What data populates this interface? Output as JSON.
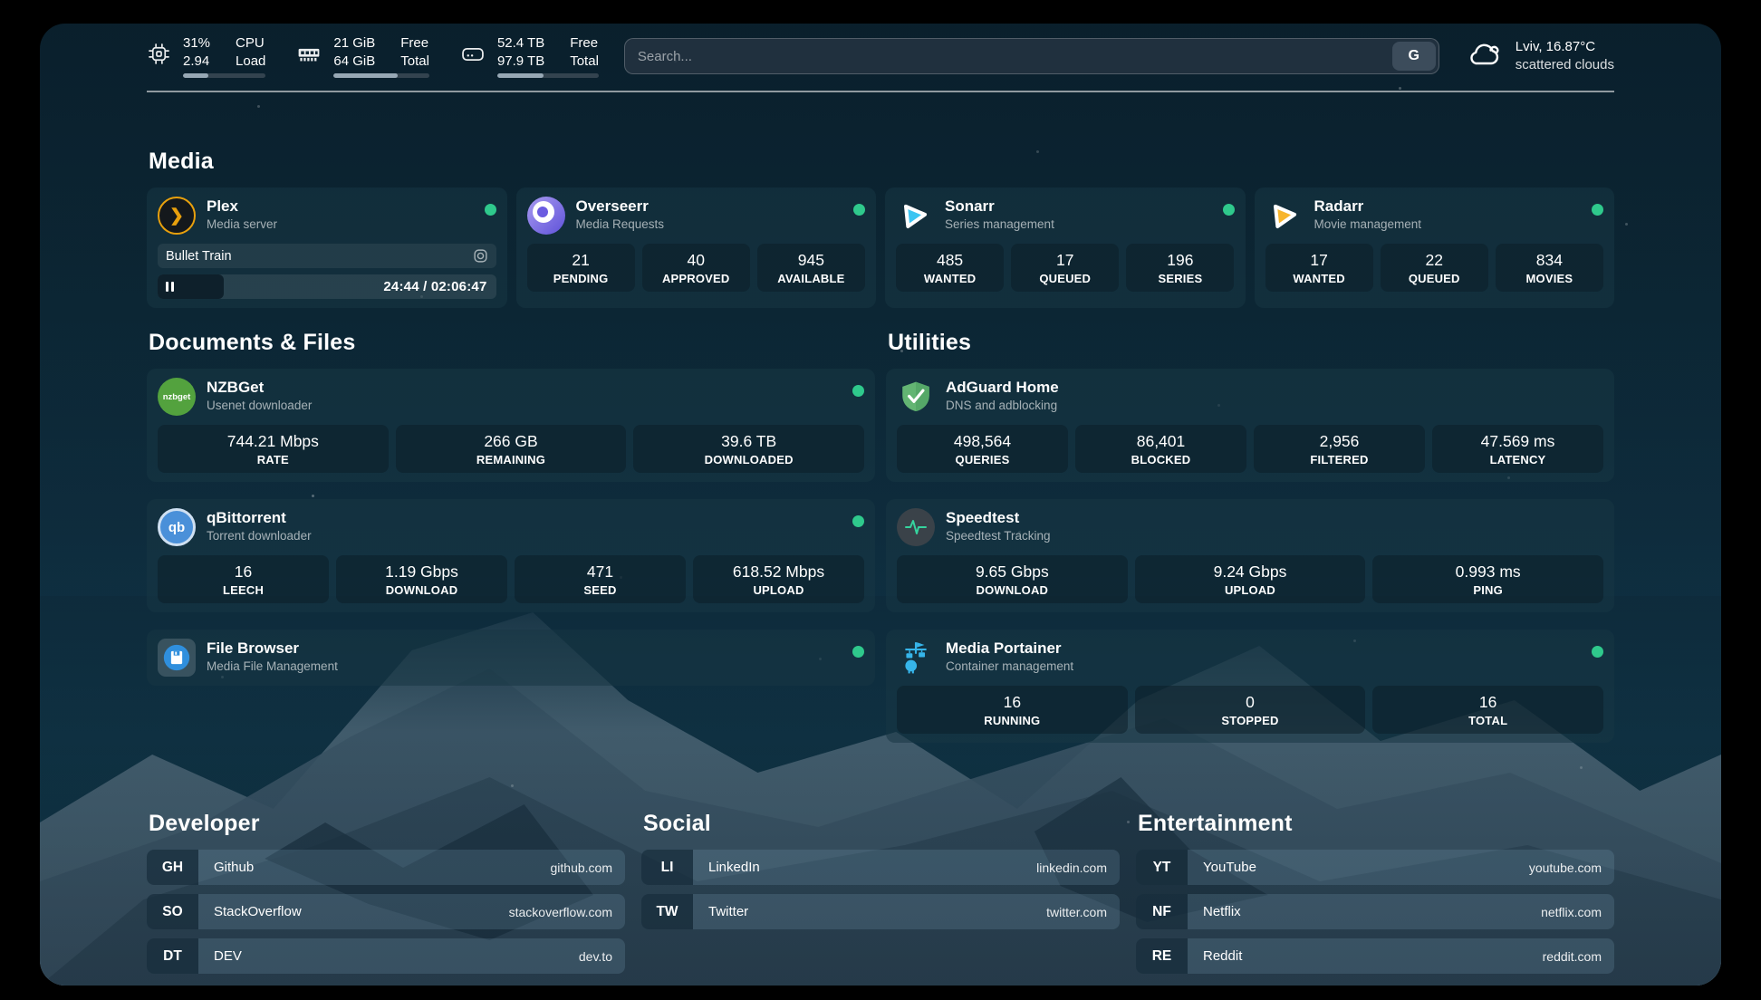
{
  "topbar": {
    "stats": [
      {
        "icon": "cpu-icon",
        "value1": "31%",
        "value2": "2.94",
        "label1": "CPU",
        "label2": "Load",
        "progress": "31%"
      },
      {
        "icon": "memory-icon",
        "value1": "21 GiB",
        "value2": "64 GiB",
        "label1": "Free",
        "label2": "Total",
        "progress": "67%"
      },
      {
        "icon": "disk-icon",
        "value1": "52.4 TB",
        "value2": "97.9 TB",
        "label1": "Free",
        "label2": "Total",
        "progress": "46%"
      }
    ],
    "search": {
      "placeholder": "Search...",
      "button": "G"
    },
    "weather": {
      "icon": "cloud-icon",
      "location_temp": "Lviv, 16.87°C",
      "condition": "scattered clouds"
    }
  },
  "media": {
    "title": "Media",
    "plex": {
      "name": "Plex",
      "desc": "Media server",
      "online": true,
      "now_playing": "Bullet Train",
      "time": "24:44 / 02:06:47",
      "progress": "19.5%"
    },
    "cards": [
      {
        "name": "Overseerr",
        "desc": "Media Requests",
        "online": true,
        "stats": [
          {
            "value": "21",
            "label": "PENDING"
          },
          {
            "value": "40",
            "label": "APPROVED"
          },
          {
            "value": "945",
            "label": "AVAILABLE"
          }
        ]
      },
      {
        "name": "Sonarr",
        "desc": "Series management",
        "online": true,
        "stats": [
          {
            "value": "485",
            "label": "WANTED"
          },
          {
            "value": "17",
            "label": "QUEUED"
          },
          {
            "value": "196",
            "label": "SERIES"
          }
        ]
      },
      {
        "name": "Radarr",
        "desc": "Movie management",
        "online": true,
        "stats": [
          {
            "value": "17",
            "label": "WANTED"
          },
          {
            "value": "22",
            "label": "QUEUED"
          },
          {
            "value": "834",
            "label": "MOVIES"
          }
        ]
      }
    ]
  },
  "documents": {
    "title": "Documents & Files",
    "cards": [
      {
        "name": "NZBGet",
        "desc": "Usenet downloader",
        "online": true,
        "stats": [
          {
            "value": "744.21 Mbps",
            "label": "RATE"
          },
          {
            "value": "266 GB",
            "label": "REMAINING"
          },
          {
            "value": "39.6 TB",
            "label": "DOWNLOADED"
          }
        ]
      },
      {
        "name": "qBittorrent",
        "desc": "Torrent downloader",
        "online": true,
        "stats": [
          {
            "value": "16",
            "label": "LEECH"
          },
          {
            "value": "1.19 Gbps",
            "label": "DOWNLOAD"
          },
          {
            "value": "471",
            "label": "SEED"
          },
          {
            "value": "618.52 Mbps",
            "label": "UPLOAD"
          }
        ]
      },
      {
        "name": "File Browser",
        "desc": "Media File Management",
        "online": true,
        "stats": []
      }
    ]
  },
  "utilities": {
    "title": "Utilities",
    "cards": [
      {
        "name": "AdGuard Home",
        "desc": "DNS and adblocking",
        "online": false,
        "stats": [
          {
            "value": "498,564",
            "label": "QUERIES"
          },
          {
            "value": "86,401",
            "label": "BLOCKED"
          },
          {
            "value": "2,956",
            "label": "FILTERED"
          },
          {
            "value": "47.569 ms",
            "label": "LATENCY"
          }
        ]
      },
      {
        "name": "Speedtest",
        "desc": "Speedtest Tracking",
        "online": false,
        "stats": [
          {
            "value": "9.65 Gbps",
            "label": "DOWNLOAD"
          },
          {
            "value": "9.24 Gbps",
            "label": "UPLOAD"
          },
          {
            "value": "0.993 ms",
            "label": "PING"
          }
        ]
      },
      {
        "name": "Media Portainer",
        "desc": "Container management",
        "online": true,
        "stats": [
          {
            "value": "16",
            "label": "RUNNING"
          },
          {
            "value": "0",
            "label": "STOPPED"
          },
          {
            "value": "16",
            "label": "TOTAL"
          }
        ]
      }
    ]
  },
  "bookmarks": {
    "groups": [
      {
        "title": "Developer",
        "items": [
          {
            "abbr": "GH",
            "name": "Github",
            "domain": "github.com"
          },
          {
            "abbr": "SO",
            "name": "StackOverflow",
            "domain": "stackoverflow.com"
          },
          {
            "abbr": "DT",
            "name": "DEV",
            "domain": "dev.to"
          }
        ]
      },
      {
        "title": "Social",
        "items": [
          {
            "abbr": "LI",
            "name": "LinkedIn",
            "domain": "linkedin.com"
          },
          {
            "abbr": "TW",
            "name": "Twitter",
            "domain": "twitter.com"
          }
        ]
      },
      {
        "title": "Entertainment",
        "items": [
          {
            "abbr": "YT",
            "name": "YouTube",
            "domain": "youtube.com"
          },
          {
            "abbr": "NF",
            "name": "Netflix",
            "domain": "netflix.com"
          },
          {
            "abbr": "RE",
            "name": "Reddit",
            "domain": "reddit.com"
          }
        ]
      }
    ]
  },
  "icons": {
    "nzbget_logo_text": "nzbget",
    "qbittorrent_logo_text": "qb"
  },
  "colors": {
    "status_online": "#2fc98c",
    "plex_gold": "#e8a00d",
    "sonarr_cyan": "#3cc5f2",
    "radarr_gold": "#f7b52c",
    "adguard_green": "#63b573",
    "portainer_blue": "#36b5ea"
  }
}
